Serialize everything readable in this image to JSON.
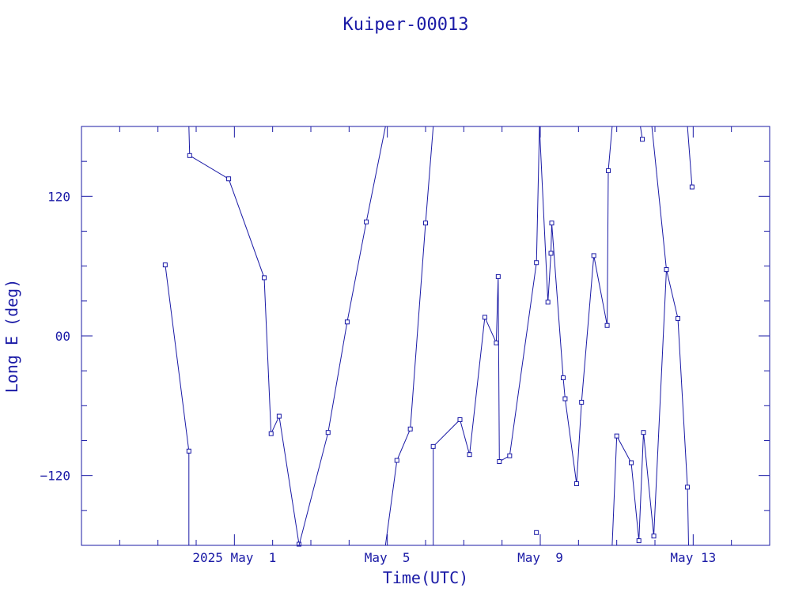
{
  "chart_data": {
    "type": "line",
    "title": "Kuiper-00013",
    "xlabel": "Time(UTC)",
    "ylabel": "Long E (deg)",
    "x_unit": "day (April 28, 2025 = 0)",
    "xlim": [
      26.0,
      44.0
    ],
    "ylim": [
      -180,
      180
    ],
    "x_ticks": [
      {
        "value": 30.0,
        "label": "2025 May  1"
      },
      {
        "value": 34.0,
        "label": "May  5"
      },
      {
        "value": 38.0,
        "label": "May  9"
      },
      {
        "value": 42.0,
        "label": "May 13"
      }
    ],
    "y_ticks": [
      {
        "value": 120,
        "label": "120"
      },
      {
        "value": 0,
        "label": "00"
      },
      {
        "value": -120,
        "label": "−120"
      }
    ],
    "color": "#1a1aa6",
    "marker": "square",
    "grid": false,
    "series": [
      {
        "points": [
          [
            28.19,
            61
          ],
          [
            28.81,
            -99
          ],
          [
            28.81,
            -180
          ]
        ]
      },
      {
        "points": [
          [
            28.81,
            180
          ],
          [
            28.83,
            155
          ],
          [
            29.85,
            135
          ],
          [
            30.78,
            50
          ],
          [
            30.96,
            -84
          ],
          [
            31.17,
            -69
          ],
          [
            31.69,
            -179
          ],
          [
            31.69,
            -180
          ]
        ]
      },
      {
        "points": [
          [
            31.69,
            -180
          ],
          [
            32.45,
            -83
          ],
          [
            32.95,
            12
          ],
          [
            33.45,
            98
          ],
          [
            33.95,
            180
          ]
        ]
      },
      {
        "points": [
          [
            33.95,
            -180
          ],
          [
            34.25,
            -107
          ],
          [
            34.6,
            -80
          ],
          [
            35.0,
            97
          ],
          [
            35.2,
            180
          ]
        ]
      },
      {
        "points": [
          [
            35.2,
            -180
          ],
          [
            35.2,
            -95
          ],
          [
            35.9,
            -72
          ],
          [
            36.15,
            -102
          ],
          [
            36.55,
            16
          ],
          [
            36.85,
            -6
          ],
          [
            36.9,
            51
          ],
          [
            36.93,
            -108
          ],
          [
            37.2,
            -103
          ],
          [
            37.9,
            63
          ],
          [
            37.98,
            180
          ]
        ]
      },
      {
        "points": [
          [
            37.9,
            -169
          ]
        ]
      },
      {
        "points": [
          [
            37.98,
            180
          ],
          [
            38.2,
            29
          ],
          [
            38.28,
            71
          ],
          [
            38.3,
            97
          ],
          [
            38.6,
            -36
          ],
          [
            38.65,
            -54
          ],
          [
            38.95,
            -127
          ],
          [
            39.08,
            -57
          ],
          [
            39.4,
            69
          ],
          [
            39.75,
            9
          ],
          [
            39.78,
            142
          ],
          [
            39.88,
            180
          ]
        ]
      },
      {
        "points": [
          [
            39.88,
            -180
          ],
          [
            40.0,
            -86
          ],
          [
            40.38,
            -109
          ],
          [
            40.58,
            -176
          ],
          [
            40.7,
            -83
          ],
          [
            40.97,
            -172
          ],
          [
            41.3,
            57
          ],
          [
            41.6,
            15
          ],
          [
            41.85,
            -130
          ],
          [
            41.88,
            -180
          ]
        ]
      },
      {
        "points": [
          [
            40.62,
            180
          ],
          [
            40.67,
            169
          ]
        ]
      },
      {
        "points": [
          [
            40.92,
            180
          ],
          [
            41.3,
            57
          ]
        ]
      },
      {
        "points": [
          [
            41.85,
            180
          ],
          [
            41.97,
            128
          ]
        ]
      }
    ]
  }
}
